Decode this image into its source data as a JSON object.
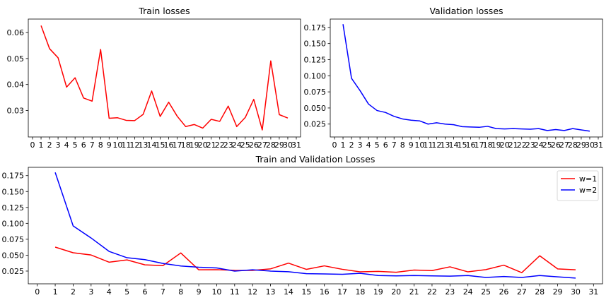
{
  "chart_data": [
    {
      "type": "line",
      "title": "Train losses",
      "xlabel": "",
      "ylabel": "",
      "x_ticks": [
        0,
        1,
        2,
        3,
        4,
        5,
        6,
        7,
        8,
        9,
        10,
        11,
        12,
        13,
        14,
        15,
        16,
        17,
        18,
        19,
        20,
        21,
        22,
        23,
        24,
        25,
        26,
        27,
        28,
        29,
        30,
        31
      ],
      "y_ticks": [
        0.03,
        0.04,
        0.05,
        0.06
      ],
      "y_tick_labels": [
        "0.03",
        "0.04",
        "0.05",
        "0.06"
      ],
      "xlim": [
        -0.5,
        31.5
      ],
      "ylim": [
        0.0198,
        0.0652
      ],
      "grid": false,
      "series": [
        {
          "color": "#ff0000",
          "x": [
            1,
            2,
            3,
            4,
            5,
            6,
            7,
            8,
            9,
            10,
            11,
            12,
            13,
            14,
            15,
            16,
            17,
            18,
            19,
            20,
            21,
            22,
            23,
            24,
            25,
            26,
            27,
            28,
            29,
            30
          ],
          "values": [
            0.0627,
            0.0538,
            0.0503,
            0.039,
            0.0426,
            0.0348,
            0.0336,
            0.0535,
            0.027,
            0.0272,
            0.0262,
            0.0261,
            0.0285,
            0.0375,
            0.0277,
            0.0332,
            0.0278,
            0.0238,
            0.0246,
            0.0232,
            0.0266,
            0.0258,
            0.0317,
            0.0238,
            0.0273,
            0.0343,
            0.0225,
            0.0491,
            0.0284,
            0.0271
          ]
        }
      ]
    },
    {
      "type": "line",
      "title": "Validation losses",
      "xlabel": "",
      "ylabel": "",
      "x_ticks": [
        0,
        1,
        2,
        3,
        4,
        5,
        6,
        7,
        8,
        9,
        10,
        11,
        12,
        13,
        14,
        15,
        16,
        17,
        18,
        19,
        20,
        21,
        22,
        23,
        24,
        25,
        26,
        27,
        28,
        29,
        30,
        31
      ],
      "y_ticks": [
        0.025,
        0.05,
        0.075,
        0.1,
        0.125,
        0.15,
        0.175
      ],
      "y_tick_labels": [
        "0.025",
        "0.050",
        "0.075",
        "0.100",
        "0.125",
        "0.150",
        "0.175"
      ],
      "xlim": [
        -0.5,
        31.5
      ],
      "ylim": [
        0.005,
        0.188
      ],
      "grid": false,
      "series": [
        {
          "color": "#0000ff",
          "x": [
            1,
            2,
            3,
            4,
            5,
            6,
            7,
            8,
            9,
            10,
            11,
            12,
            13,
            14,
            15,
            16,
            17,
            18,
            19,
            20,
            21,
            22,
            23,
            24,
            25,
            26,
            27,
            28,
            29,
            30
          ],
          "values": [
            0.18,
            0.096,
            0.077,
            0.056,
            0.046,
            0.043,
            0.037,
            0.033,
            0.031,
            0.03,
            0.025,
            0.027,
            0.025,
            0.024,
            0.021,
            0.0205,
            0.02,
            0.0215,
            0.018,
            0.0175,
            0.018,
            0.0175,
            0.017,
            0.018,
            0.015,
            0.0165,
            0.015,
            0.018,
            0.016,
            0.014
          ]
        }
      ]
    },
    {
      "type": "line",
      "title": "Train and Validation Losses",
      "xlabel": "",
      "ylabel": "",
      "x_ticks": [
        0,
        1,
        2,
        3,
        4,
        5,
        6,
        7,
        8,
        9,
        10,
        11,
        12,
        13,
        14,
        15,
        16,
        17,
        18,
        19,
        20,
        21,
        22,
        23,
        24,
        25,
        26,
        27,
        28,
        29,
        30,
        31
      ],
      "y_ticks": [
        0.025,
        0.05,
        0.075,
        0.1,
        0.125,
        0.15,
        0.175
      ],
      "y_tick_labels": [
        "0.025",
        "0.050",
        "0.075",
        "0.100",
        "0.125",
        "0.150",
        "0.175"
      ],
      "xlim": [
        -0.5,
        31.5
      ],
      "ylim": [
        0.005,
        0.188
      ],
      "grid": false,
      "legend_position": "top-right",
      "series": [
        {
          "name": "w=1",
          "color": "#ff0000",
          "x": [
            1,
            2,
            3,
            4,
            5,
            6,
            7,
            8,
            9,
            10,
            11,
            12,
            13,
            14,
            15,
            16,
            17,
            18,
            19,
            20,
            21,
            22,
            23,
            24,
            25,
            26,
            27,
            28,
            29,
            30
          ],
          "values": [
            0.0627,
            0.0538,
            0.0503,
            0.039,
            0.0426,
            0.0348,
            0.0336,
            0.0535,
            0.027,
            0.0272,
            0.0262,
            0.0261,
            0.0285,
            0.0375,
            0.0277,
            0.0332,
            0.0278,
            0.0238,
            0.0246,
            0.0232,
            0.0266,
            0.0258,
            0.0317,
            0.0238,
            0.0273,
            0.0343,
            0.0225,
            0.0491,
            0.0284,
            0.0271
          ]
        },
        {
          "name": "w=2",
          "color": "#0000ff",
          "x": [
            1,
            2,
            3,
            4,
            5,
            6,
            7,
            8,
            9,
            10,
            11,
            12,
            13,
            14,
            15,
            16,
            17,
            18,
            19,
            20,
            21,
            22,
            23,
            24,
            25,
            26,
            27,
            28,
            29,
            30
          ],
          "values": [
            0.18,
            0.096,
            0.077,
            0.056,
            0.046,
            0.043,
            0.037,
            0.033,
            0.031,
            0.03,
            0.025,
            0.027,
            0.025,
            0.024,
            0.021,
            0.0205,
            0.02,
            0.0215,
            0.018,
            0.0175,
            0.018,
            0.0175,
            0.017,
            0.018,
            0.015,
            0.0165,
            0.015,
            0.018,
            0.016,
            0.014
          ]
        }
      ]
    }
  ]
}
